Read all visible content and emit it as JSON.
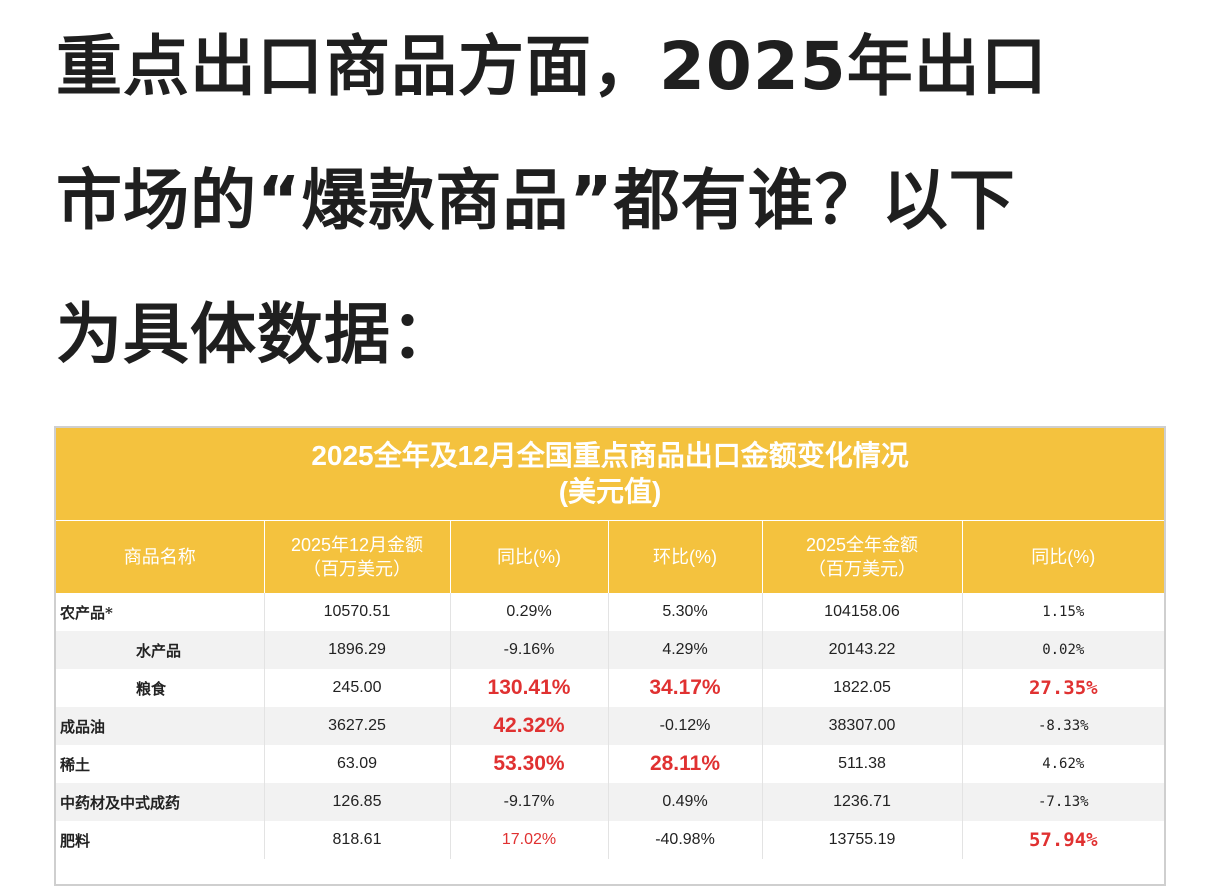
{
  "headline": {
    "line1": "重点出口商品方面，2025年出口",
    "line2": "市场的“爆款商品”都有谁？以下",
    "line3": "为具体数据："
  },
  "table": {
    "title_line1": "2025全年及12月全国重点商品出口金额变化情况",
    "title_line2": "(美元值)",
    "headers": [
      {
        "line1": "商品名称",
        "line2": ""
      },
      {
        "line1": "2025年12月金额",
        "line2": "（百万美元）"
      },
      {
        "line1": "同比(%)",
        "line2": ""
      },
      {
        "line1": "环比(%)",
        "line2": ""
      },
      {
        "line1": "2025全年金额",
        "line2": "（百万美元）"
      },
      {
        "line1": "同比(%)",
        "line2": ""
      }
    ],
    "rows": [
      {
        "name": "农产品*",
        "dec": "10570.51",
        "yoy": "0.29%",
        "mom": "5.30%",
        "year": "104158.06",
        "year_yoy": "1.15%"
      },
      {
        "name": "水产品",
        "dec": "1896.29",
        "yoy": "-9.16%",
        "mom": "4.29%",
        "year": "20143.22",
        "year_yoy": "0.02%"
      },
      {
        "name": "粮食",
        "dec": "245.00",
        "yoy": "130.41%",
        "mom": "34.17%",
        "year": "1822.05",
        "year_yoy": "27.35%"
      },
      {
        "name": "成品油",
        "dec": "3627.25",
        "yoy": "42.32%",
        "mom": "-0.12%",
        "year": "38307.00",
        "year_yoy": "-8.33%"
      },
      {
        "name": "稀土",
        "dec": "63.09",
        "yoy": "53.30%",
        "mom": "28.11%",
        "year": "511.38",
        "year_yoy": "4.62%"
      },
      {
        "name": "中药材及中式成药",
        "dec": "126.85",
        "yoy": "-9.17%",
        "mom": "0.49%",
        "year": "1236.71",
        "year_yoy": "-7.13%"
      },
      {
        "name": "肥料",
        "dec": "818.61",
        "yoy": "17.02%",
        "mom": "-40.98%",
        "year": "13755.19",
        "year_yoy": "57.94%"
      }
    ]
  },
  "colors": {
    "header_bg": "#f4c23e",
    "highlight": "#e03131"
  }
}
